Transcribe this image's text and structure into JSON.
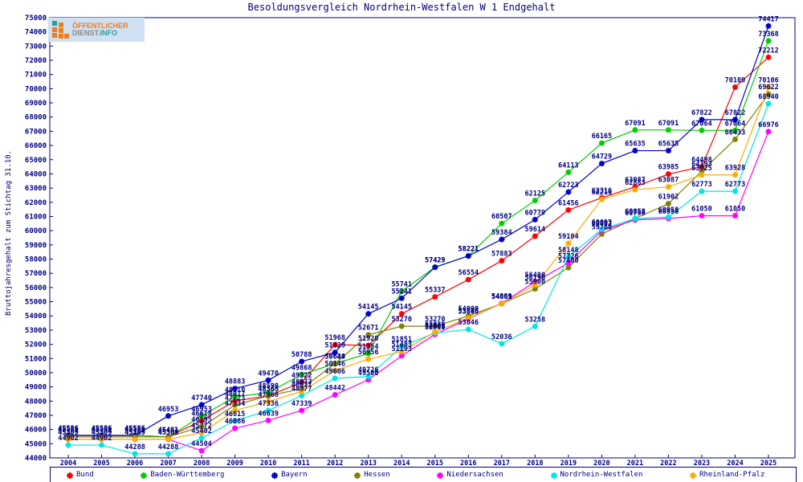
{
  "window": {
    "title": "Besoldungsvergleich Nordrhein-Westfalen W 1 Endgehalt"
  },
  "brand": {
    "line1": "ÖFFENTLICHER",
    "line2_gray": "DIENST.",
    "line2_teal": "INFO"
  },
  "chart_data": {
    "type": "line",
    "title": "Besoldungsvergleich Nordrhein-Westfalen W 1 Endgehalt",
    "ylabel": "Bruttojahresgehalt zum Stichtag 31.10.",
    "xlabel": "",
    "x": [
      2004,
      2005,
      2006,
      2007,
      2008,
      2009,
      2010,
      2011,
      2012,
      2013,
      2014,
      2015,
      2016,
      2017,
      2018,
      2019,
      2020,
      2021,
      2022,
      2023,
      2024,
      2025
    ],
    "ylim": [
      44000,
      75000
    ],
    "ytick_step": 1000,
    "grid": false,
    "legend_position": "bottom",
    "point_labels": true,
    "axis_color": "#000080",
    "label_color": "#000080",
    "series": [
      {
        "name": "Bund",
        "color": "#ff0000",
        "values": [
          45586,
          45586,
          45586,
          45481,
          46618,
          48017,
          48365,
          49322,
          51968,
          51920,
          54145,
          55337,
          56554,
          57883,
          59614,
          61456,
          62316,
          63087,
          63985,
          64498,
          70109,
          72212
        ]
      },
      {
        "name": "Baden-Württemberg",
        "color": "#00cc00",
        "values": [
          45586,
          45586,
          45586,
          45481,
          46953,
          48310,
          48590,
          49868,
          50640,
          51354,
          55741,
          57429,
          58221,
          60507,
          62125,
          64113,
          66165,
          67091,
          67091,
          67064,
          67064,
          73368
        ]
      },
      {
        "name": "Bayern",
        "color": "#0000cc",
        "values": [
          45586,
          45586,
          45586,
          46953,
          47740,
          48883,
          49470,
          50788,
          51429,
          54145,
          55241,
          57429,
          58221,
          59384,
          60779,
          62723,
          64729,
          65635,
          65635,
          67822,
          67822,
          74417
        ]
      },
      {
        "name": "Hessen",
        "color": "#808000",
        "values": [
          45481,
          45481,
          45481,
          45481,
          46195,
          47723,
          48365,
          48877,
          50634,
          52671,
          53270,
          53270,
          54000,
          54861,
          55900,
          57400,
          59760,
          60858,
          61902,
          64193,
          66433,
          69622
        ]
      },
      {
        "name": "Niedersachsen",
        "color": "#ff00ff",
        "values": [
          45309,
          45309,
          45309,
          45309,
          44504,
          46086,
          46639,
          47339,
          48442,
          49500,
          51193,
          52700,
          53806,
          54889,
          56400,
          57726,
          60002,
          60758,
          60858,
          61050,
          61050,
          66976
        ]
      },
      {
        "name": "Nordrhein-Westfalen",
        "color": "#00e5e5",
        "values": [
          44902,
          44902,
          44288,
          44288,
          45402,
          46615,
          47336,
          48377,
          49606,
          49726,
          51851,
          52800,
          53046,
          52036,
          53258,
          58148,
          60093,
          60858,
          60958,
          62773,
          62773,
          68940
        ]
      },
      {
        "name": "Rheinland-Pfalz",
        "color": "#ffaa00",
        "values": [
          45309,
          45309,
          45309,
          45309,
          45772,
          47334,
          47968,
          48677,
          50146,
          50956,
          51483,
          52875,
          53846,
          54869,
          56190,
          59104,
          62216,
          62883,
          63087,
          63925,
          63928,
          70106
        ]
      }
    ]
  }
}
